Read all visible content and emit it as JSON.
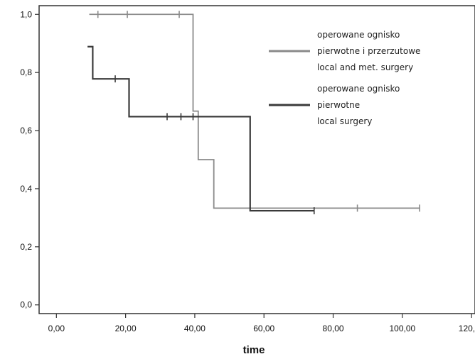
{
  "chart_data": {
    "type": "line",
    "step": "post",
    "xlabel": "time",
    "ylabel": "",
    "xlim": [
      -5,
      121
    ],
    "ylim": [
      -0.03,
      1.03
    ],
    "x_ticks": [
      0,
      20,
      40,
      60,
      80,
      100,
      120
    ],
    "x_tick_labels": [
      "0,00",
      "20,00",
      "40,00",
      "60,00",
      "80,00",
      "100,00",
      "120,00"
    ],
    "y_ticks": [
      0,
      0.2,
      0.4,
      0.6,
      0.8,
      1.0
    ],
    "y_tick_labels": [
      "0,0",
      "0,2",
      "0,4",
      "0,6",
      "0,8",
      "1,0"
    ],
    "grid": false,
    "legend_position": "top-right",
    "series": [
      {
        "name": "operowane ognisko pierwotne i przerzutowe local and met. surgery",
        "legend_lines": [
          "operowane ognisko",
          "pierwotne i przerzutowe",
          "local and met. surgery"
        ],
        "color": "#8a8a8a",
        "x": [
          9.5,
          39.5,
          41,
          45.5,
          105
        ],
        "y": [
          1.0,
          0.667,
          0.5,
          0.333,
          0.333
        ],
        "censored": [
          {
            "x": 12,
            "y": 1.0
          },
          {
            "x": 20.5,
            "y": 1.0
          },
          {
            "x": 35.5,
            "y": 1.0
          },
          {
            "x": 87,
            "y": 0.333
          },
          {
            "x": 105,
            "y": 0.333
          }
        ]
      },
      {
        "name": "operowane ognisko pierwotne local surgery",
        "legend_lines": [
          "operowane ognisko",
          "pierwotne",
          "local surgery"
        ],
        "color": "#3a3a3a",
        "x": [
          9,
          10.5,
          21,
          56,
          74.5
        ],
        "y": [
          0.889,
          0.778,
          0.648,
          0.324,
          0.324
        ],
        "censored": [
          {
            "x": 17,
            "y": 0.778
          },
          {
            "x": 32,
            "y": 0.648
          },
          {
            "x": 36,
            "y": 0.648
          },
          {
            "x": 39.5,
            "y": 0.648
          },
          {
            "x": 74.5,
            "y": 0.324
          }
        ]
      }
    ]
  }
}
